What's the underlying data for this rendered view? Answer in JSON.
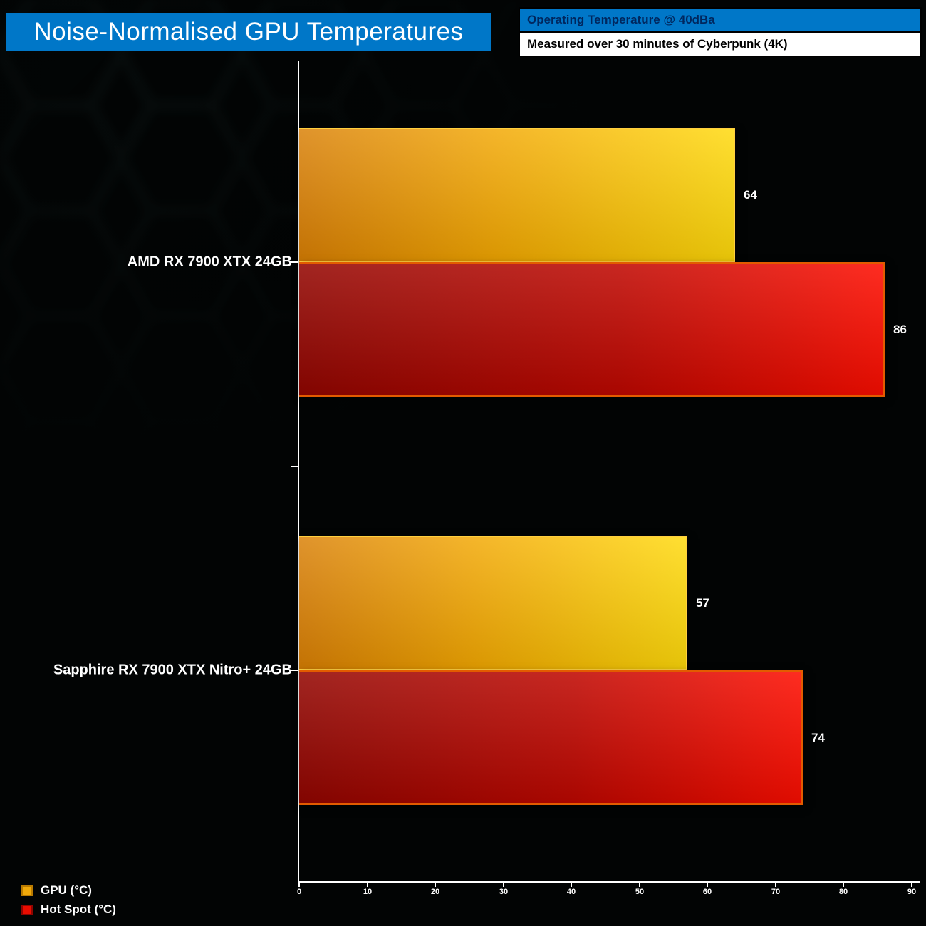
{
  "title": "Noise-Normalised GPU Temperatures",
  "banner": {
    "line1": "Operating Temperature @ 40dBa",
    "line2": "Measured over 30 minutes of Cyberpunk (4K)"
  },
  "colors": {
    "header_blue": "#0077c8",
    "gpu_bar_start": "#d97f04",
    "gpu_bar_end": "#ffd90a",
    "hotspot_bar_start": "#930500",
    "hotspot_bar_end": "#fe0d00",
    "text": "#ffffff"
  },
  "legend": [
    {
      "label": "GPU (°C)",
      "color": "#f0a90a",
      "border": "#b97a00"
    },
    {
      "label": "Hot Spot (°C)",
      "color": "#e80c00",
      "border": "#8f0400"
    }
  ],
  "chart_data": {
    "type": "bar",
    "orientation": "horizontal",
    "title": "Noise-Normalised GPU Temperatures",
    "subtitle1": "Operating Temperature @ 40dBa",
    "subtitle2": "Measured over 30 minutes of Cyberpunk (4K)",
    "categories": [
      "AMD RX 7900 XTX 24GB",
      "Sapphire RX 7900 XTX Nitro+ 24GB"
    ],
    "series": [
      {
        "name": "GPU (°C)",
        "values": [
          64,
          57
        ]
      },
      {
        "name": "Hot Spot (°C)",
        "values": [
          86,
          74
        ]
      }
    ],
    "xlim": [
      0,
      90
    ],
    "xticks": [
      0,
      10,
      20,
      30,
      40,
      50,
      60,
      70,
      80,
      90
    ],
    "grid": false,
    "legend_position": "bottom-left"
  }
}
